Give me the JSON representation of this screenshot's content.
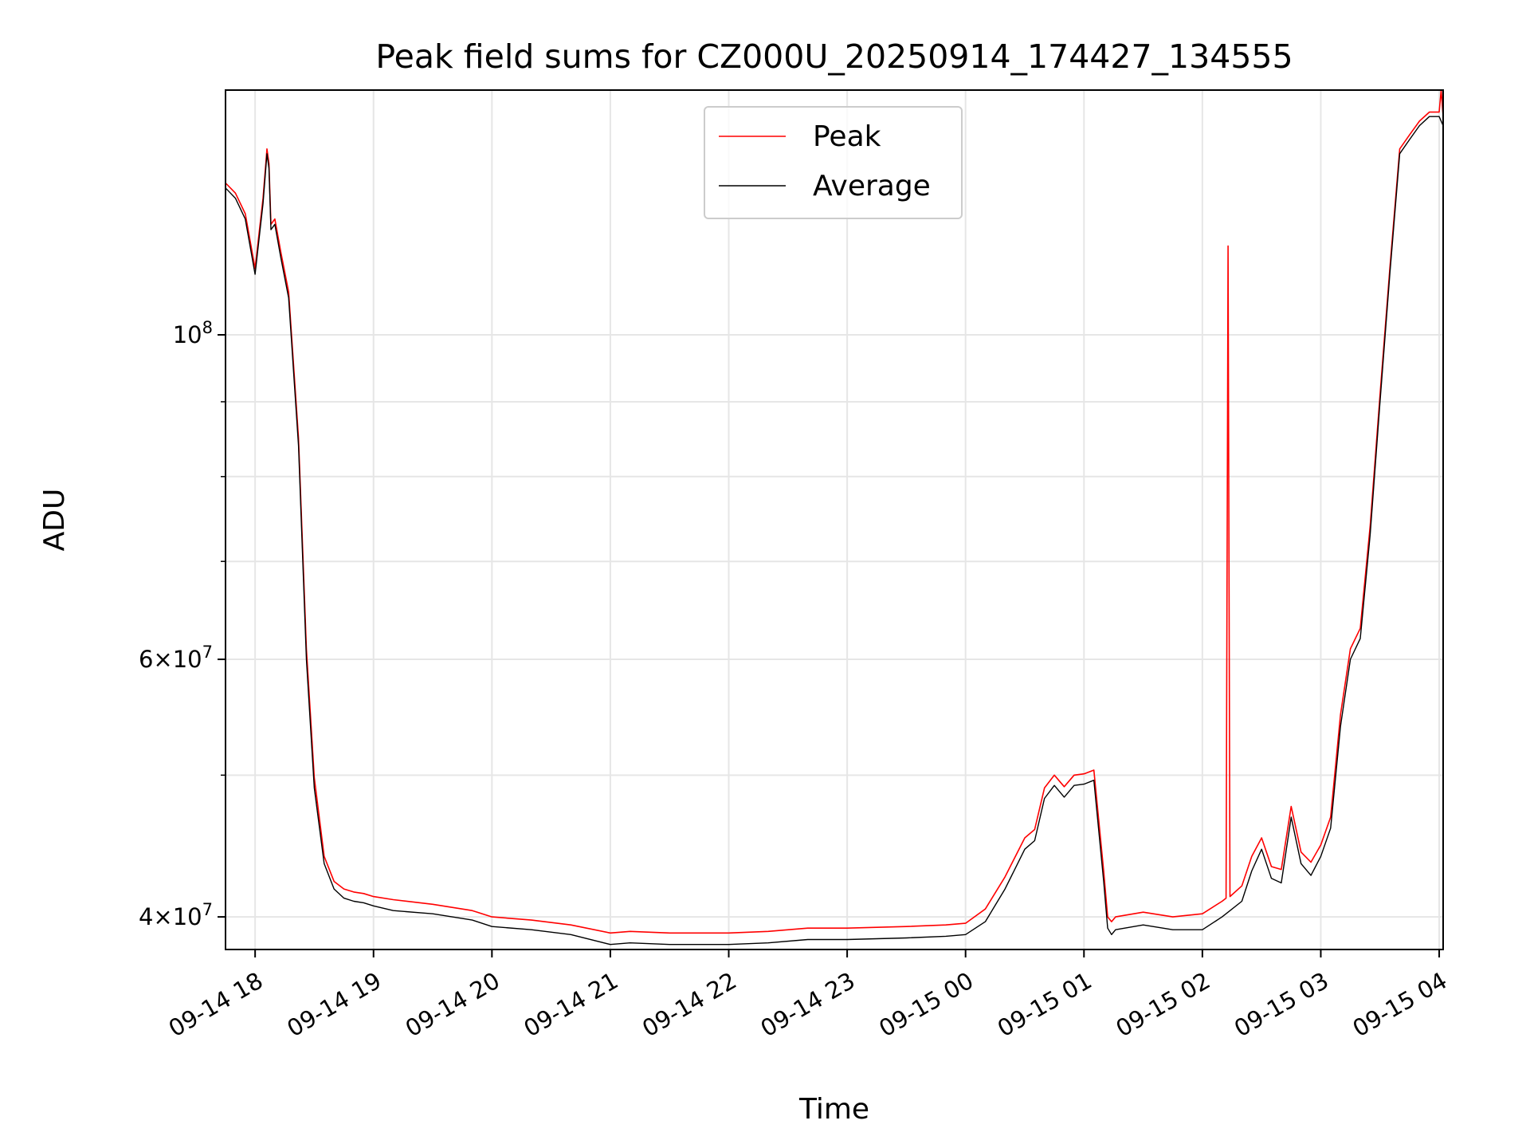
{
  "chart_data": {
    "type": "line",
    "title": "Peak field sums for CZ000U_20250914_174427_134555",
    "xlabel": "Time",
    "ylabel": "ADU",
    "y_scale": "log",
    "xlim": [
      "2025-09-14 17:45",
      "2025-09-15 04:02"
    ],
    "ylim": [
      38000000,
      147000000
    ],
    "grid": true,
    "legend_position": "upper-center",
    "x_tick_labels": [
      "09-14 18",
      "09-14 19",
      "09-14 20",
      "09-14 21",
      "09-14 22",
      "09-14 23",
      "09-15 00",
      "09-15 01",
      "09-15 02",
      "09-15 03",
      "09-15 04"
    ],
    "y_tick_labels": [
      {
        "value": 100000000,
        "mantissa": "",
        "base": "10",
        "exp": "8"
      },
      {
        "value": 60000000,
        "mantissa": "6",
        "base": "10",
        "exp": "7"
      },
      {
        "value": 40000000,
        "mantissa": "4",
        "base": "10",
        "exp": "7"
      }
    ],
    "series": [
      {
        "name": "Average",
        "color": "#000000",
        "x": [
          "2025-09-14 17:45",
          "2025-09-14 17:50",
          "2025-09-14 17:55",
          "2025-09-14 18:00",
          "2025-09-14 18:04",
          "2025-09-14 18:06",
          "2025-09-14 18:07",
          "2025-09-14 18:08",
          "2025-09-14 18:10",
          "2025-09-14 18:13",
          "2025-09-14 18:17",
          "2025-09-14 18:22",
          "2025-09-14 18:26",
          "2025-09-14 18:30",
          "2025-09-14 18:35",
          "2025-09-14 18:40",
          "2025-09-14 18:45",
          "2025-09-14 18:50",
          "2025-09-14 18:55",
          "2025-09-14 19:00",
          "2025-09-14 19:10",
          "2025-09-14 19:30",
          "2025-09-14 19:50",
          "2025-09-14 20:00",
          "2025-09-14 20:20",
          "2025-09-14 20:40",
          "2025-09-14 21:00",
          "2025-09-14 21:10",
          "2025-09-14 21:30",
          "2025-09-14 22:00",
          "2025-09-14 22:20",
          "2025-09-14 22:40",
          "2025-09-14 23:00",
          "2025-09-14 23:30",
          "2025-09-14 23:50",
          "2025-09-15 00:00",
          "2025-09-15 00:10",
          "2025-09-15 00:20",
          "2025-09-15 00:30",
          "2025-09-15 00:35",
          "2025-09-15 00:40",
          "2025-09-15 00:45",
          "2025-09-15 00:50",
          "2025-09-15 00:55",
          "2025-09-15 01:00",
          "2025-09-15 01:05",
          "2025-09-15 01:10",
          "2025-09-15 01:12",
          "2025-09-15 01:14",
          "2025-09-15 01:16",
          "2025-09-15 01:30",
          "2025-09-15 01:45",
          "2025-09-15 02:00",
          "2025-09-15 02:10",
          "2025-09-15 02:20",
          "2025-09-15 02:25",
          "2025-09-15 02:30",
          "2025-09-15 02:35",
          "2025-09-15 02:40",
          "2025-09-15 02:45",
          "2025-09-15 02:50",
          "2025-09-15 02:55",
          "2025-09-15 03:00",
          "2025-09-15 03:05",
          "2025-09-15 03:10",
          "2025-09-15 03:15",
          "2025-09-15 03:20",
          "2025-09-15 03:25",
          "2025-09-15 03:30",
          "2025-09-15 03:35",
          "2025-09-15 03:40",
          "2025-09-15 03:45",
          "2025-09-15 03:50",
          "2025-09-15 03:55",
          "2025-09-15 04:00",
          "2025-09-15 04:02"
        ],
        "y": [
          126000000,
          124000000,
          120000000,
          110000000,
          123000000,
          133000000,
          130000000,
          118000000,
          119000000,
          113000000,
          106000000,
          84000000,
          60000000,
          49000000,
          43500000,
          41800000,
          41200000,
          41000000,
          40900000,
          40700000,
          40400000,
          40200000,
          39800000,
          39400000,
          39200000,
          38900000,
          38300000,
          38400000,
          38300000,
          38300000,
          38400000,
          38600000,
          38600000,
          38700000,
          38800000,
          38900000,
          39700000,
          41800000,
          44500000,
          45100000,
          48200000,
          49200000,
          48300000,
          49200000,
          49300000,
          49600000,
          42300000,
          39300000,
          38900000,
          39200000,
          39500000,
          39200000,
          39200000,
          40000000,
          41000000,
          43000000,
          44500000,
          42500000,
          42200000,
          46800000,
          43500000,
          42700000,
          44000000,
          46000000,
          54000000,
          60000000,
          62000000,
          73000000,
          90000000,
          110000000,
          133000000,
          136000000,
          139000000,
          141000000,
          141000000,
          139000000
        ],
        "values_approximate": true
      },
      {
        "name": "Peak",
        "color": "#ff0000",
        "x": [
          "2025-09-14 17:45",
          "2025-09-14 17:50",
          "2025-09-14 17:55",
          "2025-09-14 18:00",
          "2025-09-14 18:04",
          "2025-09-14 18:06",
          "2025-09-14 18:07",
          "2025-09-14 18:08",
          "2025-09-14 18:10",
          "2025-09-14 18:13",
          "2025-09-14 18:17",
          "2025-09-14 18:22",
          "2025-09-14 18:26",
          "2025-09-14 18:30",
          "2025-09-14 18:35",
          "2025-09-14 18:40",
          "2025-09-14 18:45",
          "2025-09-14 18:50",
          "2025-09-14 18:55",
          "2025-09-14 19:00",
          "2025-09-14 19:10",
          "2025-09-14 19:30",
          "2025-09-14 19:50",
          "2025-09-14 20:00",
          "2025-09-14 20:20",
          "2025-09-14 20:40",
          "2025-09-14 21:00",
          "2025-09-14 21:10",
          "2025-09-14 21:30",
          "2025-09-14 22:00",
          "2025-09-14 22:20",
          "2025-09-14 22:40",
          "2025-09-14 23:00",
          "2025-09-14 23:30",
          "2025-09-14 23:50",
          "2025-09-15 00:00",
          "2025-09-15 00:10",
          "2025-09-15 00:20",
          "2025-09-15 00:30",
          "2025-09-15 00:35",
          "2025-09-15 00:40",
          "2025-09-15 00:45",
          "2025-09-15 00:50",
          "2025-09-15 00:55",
          "2025-09-15 01:00",
          "2025-09-15 01:05",
          "2025-09-15 01:10",
          "2025-09-15 01:12",
          "2025-09-15 01:14",
          "2025-09-15 01:16",
          "2025-09-15 01:30",
          "2025-09-15 01:45",
          "2025-09-15 02:00",
          "2025-09-15 02:10",
          "2025-09-15 02:12",
          "2025-09-15 02:13",
          "2025-09-15 02:14",
          "2025-09-15 02:20",
          "2025-09-15 02:25",
          "2025-09-15 02:30",
          "2025-09-15 02:35",
          "2025-09-15 02:40",
          "2025-09-15 02:45",
          "2025-09-15 02:50",
          "2025-09-15 02:55",
          "2025-09-15 03:00",
          "2025-09-15 03:05",
          "2025-09-15 03:10",
          "2025-09-15 03:15",
          "2025-09-15 03:20",
          "2025-09-15 03:25",
          "2025-09-15 03:30",
          "2025-09-15 03:35",
          "2025-09-15 03:40",
          "2025-09-15 03:45",
          "2025-09-15 03:50",
          "2025-09-15 03:55",
          "2025-09-15 04:00",
          "2025-09-15 04:01",
          "2025-09-15 04:02"
        ],
        "y": [
          127000000,
          125000000,
          121000000,
          111000000,
          124000000,
          134000000,
          131000000,
          119000000,
          120000000,
          114000000,
          107000000,
          85000000,
          61000000,
          49800000,
          44000000,
          42300000,
          41800000,
          41600000,
          41500000,
          41300000,
          41100000,
          40800000,
          40400000,
          40000000,
          39800000,
          39500000,
          39000000,
          39100000,
          39000000,
          39000000,
          39100000,
          39300000,
          39300000,
          39400000,
          39500000,
          39600000,
          40500000,
          42600000,
          45300000,
          45900000,
          49000000,
          50000000,
          49100000,
          50000000,
          50100000,
          50400000,
          43000000,
          40000000,
          39700000,
          40000000,
          40300000,
          40000000,
          40200000,
          41000000,
          41200000,
          115000000,
          41300000,
          42000000,
          44000000,
          45300000,
          43300000,
          43100000,
          47600000,
          44300000,
          43600000,
          44800000,
          46800000,
          55000000,
          61000000,
          63000000,
          74000000,
          91000000,
          111000000,
          134000000,
          137000000,
          140000000,
          142000000,
          142000000,
          147000000,
          141000000
        ],
        "values_approximate": true
      }
    ]
  }
}
